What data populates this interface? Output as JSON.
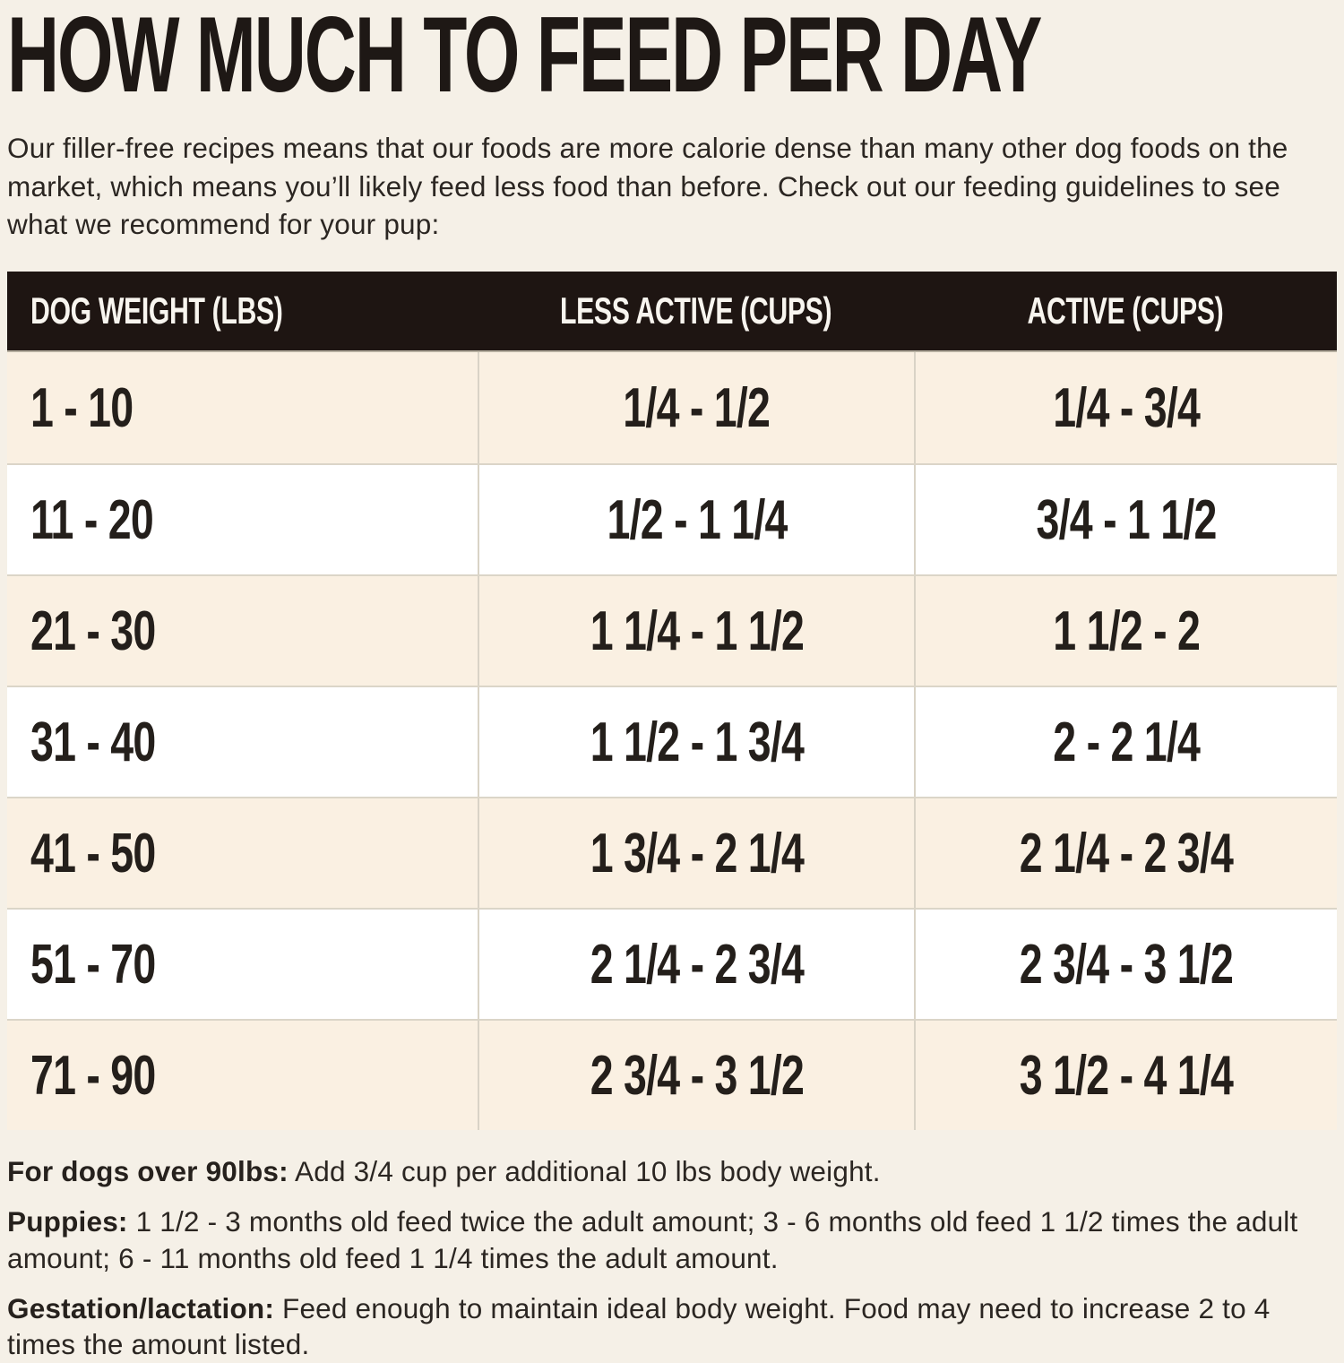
{
  "page": {
    "title": "HOW MUCH TO FEED PER DAY",
    "intro": "Our filler-free recipes means that our foods are more calorie dense than many other dog foods on the market, which means you’ll likely feed less food than before. Check out our feeding guidelines to see what we recommend for your pup:"
  },
  "table": {
    "headers": [
      "DOG WEIGHT (LBS)",
      "LESS ACTIVE (CUPS)",
      "ACTIVE (CUPS)"
    ],
    "rows": [
      [
        "1 - 10",
        "1/4 - 1/2",
        "1/4 - 3/4"
      ],
      [
        "11 - 20",
        "1/2 - 1 1/4",
        "3/4 - 1 1/2"
      ],
      [
        "21 - 30",
        "1 1/4 - 1 1/2",
        "1 1/2 - 2"
      ],
      [
        "31 - 40",
        "1 1/2 - 1 3/4",
        "2 - 2 1/4"
      ],
      [
        "41 - 50",
        "1 3/4 - 2 1/4",
        "2 1/4 - 2 3/4"
      ],
      [
        "51 - 70",
        "2 1/4 - 2 3/4",
        "2 3/4 - 3 1/2"
      ],
      [
        "71 - 90",
        "2 3/4 - 3 1/2",
        "3 1/2 - 4 1/4"
      ]
    ]
  },
  "notes": [
    {
      "label": "For dogs over 90lbs:",
      "text": "Add 3/4 cup per additional 10 lbs body weight."
    },
    {
      "label": "Puppies:",
      "text": "1 1/2 - 3 months old feed twice the adult amount; 3 - 6 months old feed 1 1/2 times the adult amount; 6 - 11 months old feed 1 1/4 times the adult amount."
    },
    {
      "label": "Gestation/lactation:",
      "text": "Feed enough to maintain ideal body weight. Food may need to increase 2 to 4 times the amount listed."
    }
  ],
  "colors": {
    "page_background": "#f5f0e7",
    "header_background": "#1e1512",
    "header_text": "#f8f5ef",
    "row_beige": "#faf0e2",
    "row_white": "#ffffff",
    "divider": "#d9d3c6",
    "text": "#26211d"
  }
}
